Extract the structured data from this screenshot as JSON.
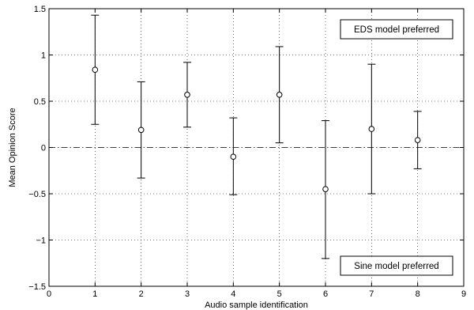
{
  "chart_data": {
    "type": "scatter",
    "xlabel": "Audio sample identification",
    "ylabel": "Mean Opinion Score",
    "xlim": [
      0,
      9
    ],
    "ylim": [
      -1.5,
      1.5
    ],
    "xticks": [
      0,
      1,
      2,
      3,
      4,
      5,
      6,
      7,
      8,
      9
    ],
    "xtick_labels": [
      "0",
      "1",
      "2",
      "3",
      "4",
      "5",
      "6",
      "7",
      "8",
      "9"
    ],
    "yticks": [
      -1.5,
      -1,
      -0.5,
      0,
      0.5,
      1,
      1.5
    ],
    "ytick_labels": [
      "−1.5",
      "−1",
      "−0.5",
      "0",
      "0.5",
      "1",
      "1.5"
    ],
    "grid": true,
    "reference_line": 0,
    "points": [
      {
        "x": 1,
        "y": 0.84,
        "low": 0.25,
        "high": 1.43
      },
      {
        "x": 2,
        "y": 0.19,
        "low": -0.33,
        "high": 0.71
      },
      {
        "x": 3,
        "y": 0.57,
        "low": 0.22,
        "high": 0.92
      },
      {
        "x": 4,
        "y": -0.1,
        "low": -0.51,
        "high": 0.32
      },
      {
        "x": 5,
        "y": 0.57,
        "low": 0.05,
        "high": 1.09
      },
      {
        "x": 6,
        "y": -0.45,
        "low": -1.2,
        "high": 0.29
      },
      {
        "x": 7,
        "y": 0.2,
        "low": -0.5,
        "high": 0.9
      },
      {
        "x": 8,
        "y": 0.08,
        "low": -0.23,
        "high": 0.39
      }
    ],
    "annotations": [
      {
        "text": "EDS model preferred",
        "placement": "top-right"
      },
      {
        "text": "Sine model preferred",
        "placement": "bottom-right"
      }
    ]
  }
}
